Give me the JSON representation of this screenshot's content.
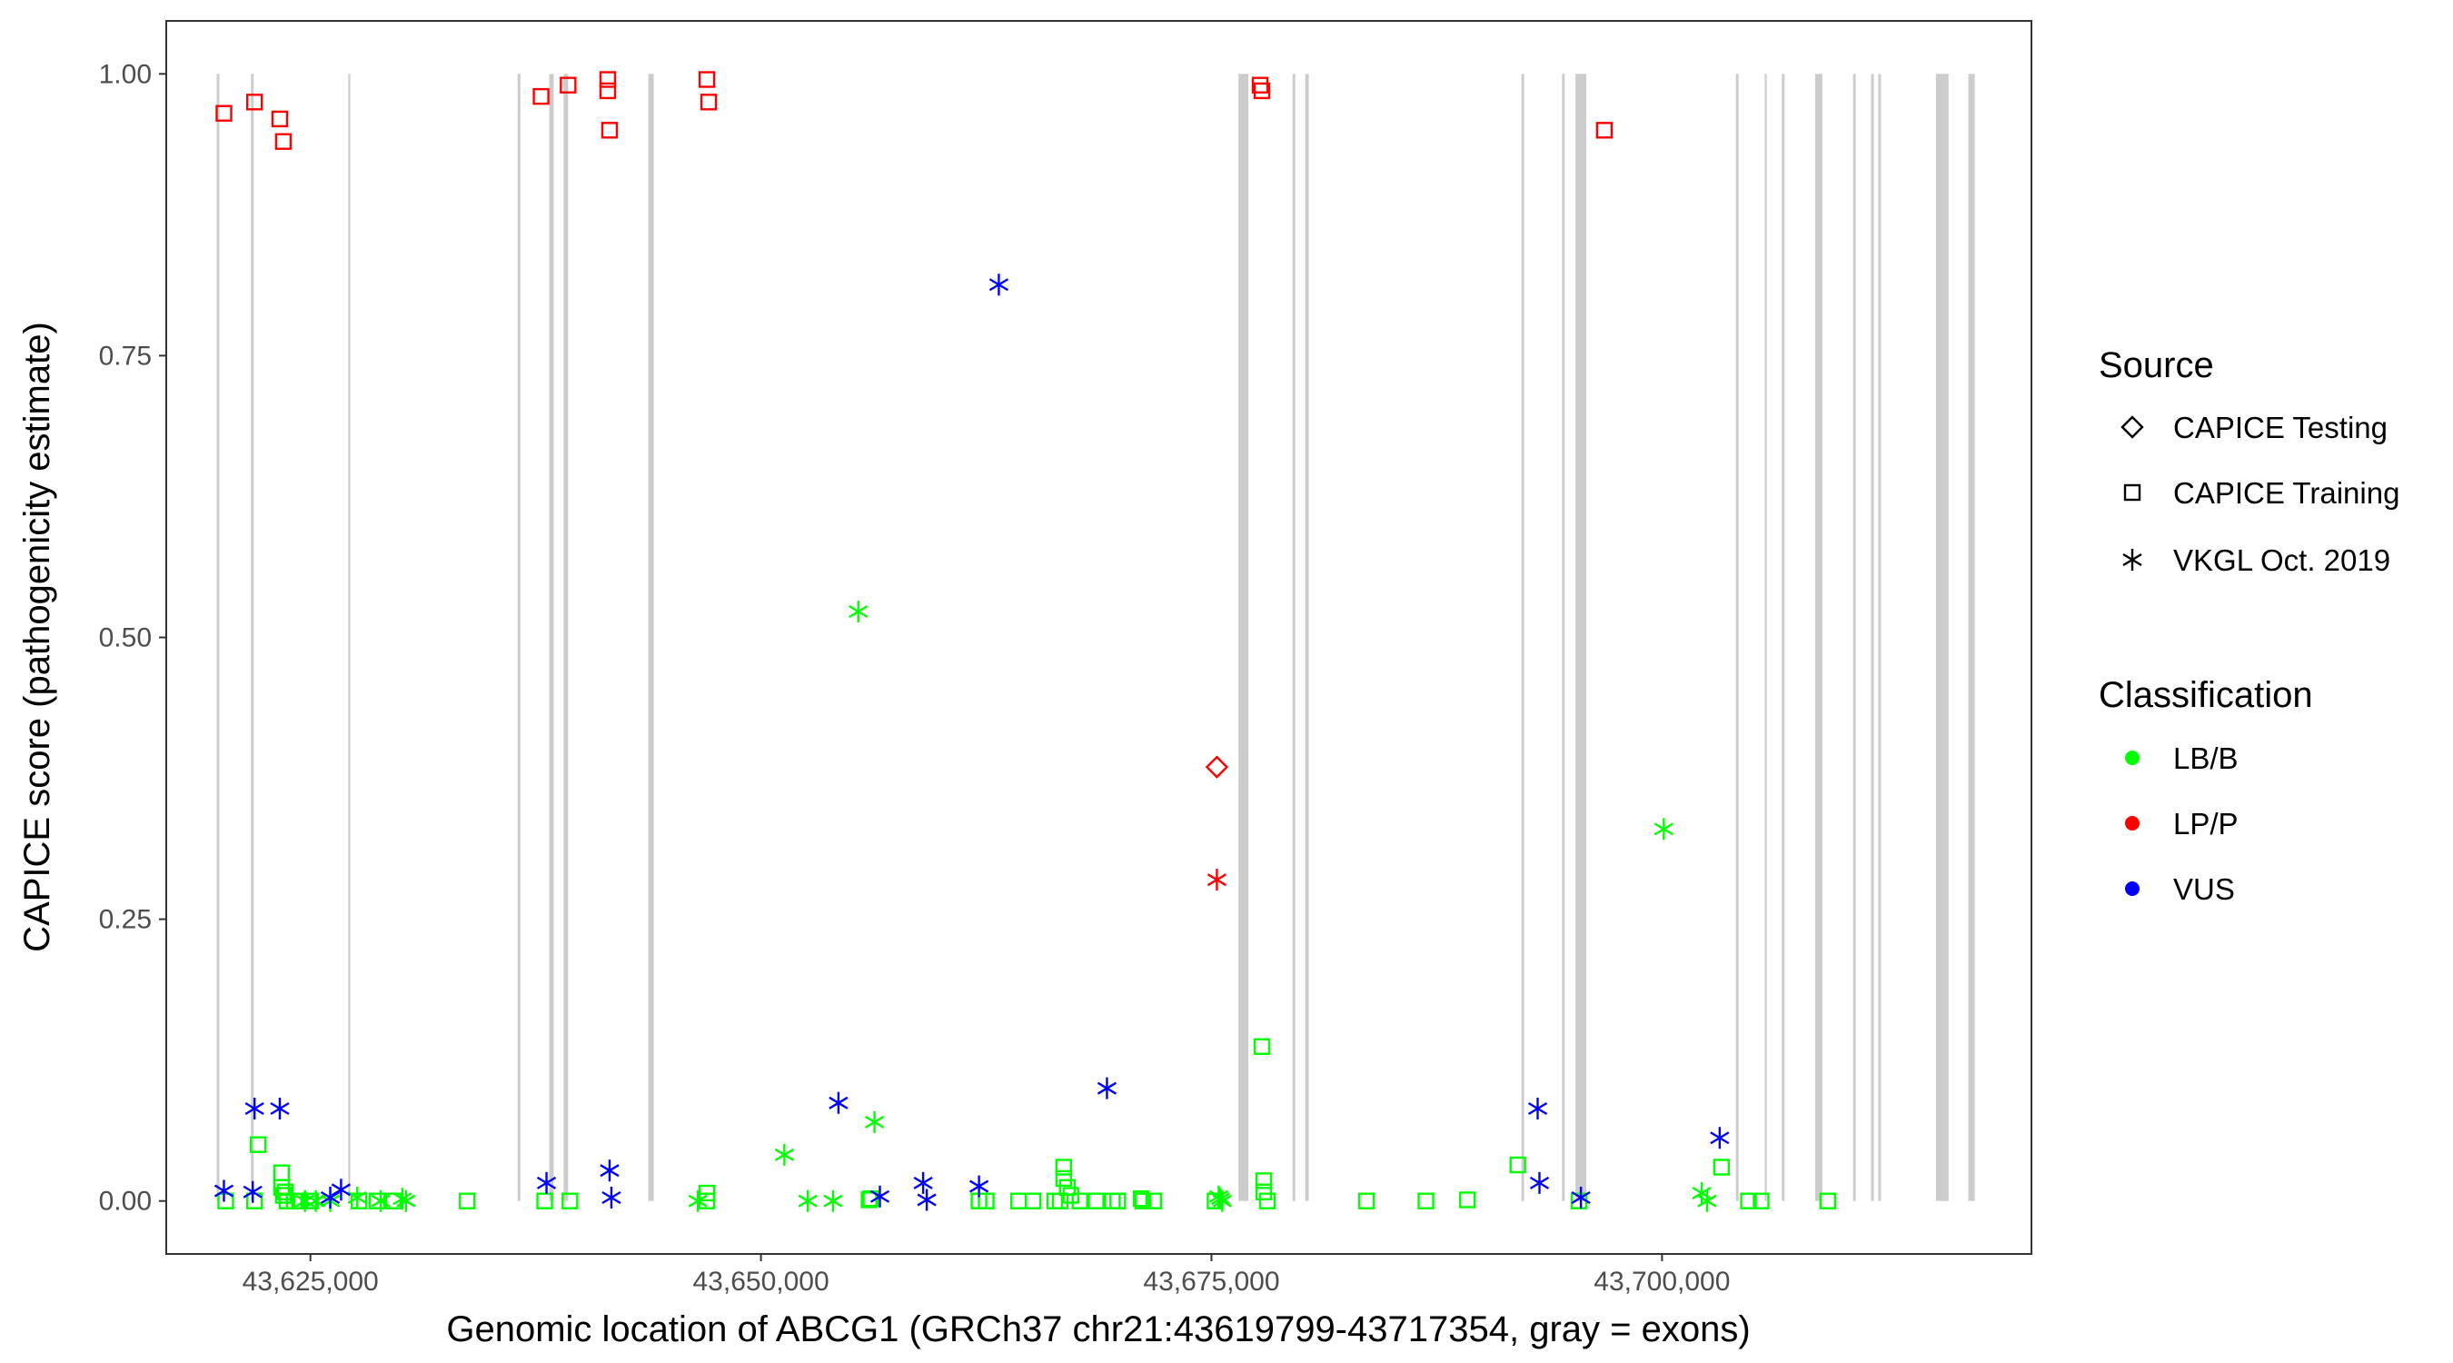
{
  "chart_data": {
    "type": "scatter",
    "xlabel": "Genomic location of ABCG1 (GRCh37 chr21:43619799-43717354, gray = exons)",
    "ylabel": "CAPICE score (pathogenicity estimate)",
    "xlim": [
      43617000,
      43720500
    ],
    "ylim": [
      -0.047,
      1.047
    ],
    "x_ticks": [
      43625000,
      43650000,
      43675000,
      43700000
    ],
    "x_tick_labels": [
      "43,625,000",
      "43,650,000",
      "43,675,000",
      "43,700,000"
    ],
    "y_ticks": [
      0,
      0.25,
      0.5,
      0.75,
      1.0
    ],
    "y_tick_labels": [
      "0.00",
      "0.25",
      "0.50",
      "0.75",
      "1.00"
    ],
    "exons": [
      [
        43619799,
        43619950
      ],
      [
        43621700,
        43621850
      ],
      [
        43627100,
        43627200
      ],
      [
        43636500,
        43636650
      ],
      [
        43638250,
        43638500
      ],
      [
        43639050,
        43639300
      ],
      [
        43643750,
        43644050
      ],
      [
        43676500,
        43677050
      ],
      [
        43679500,
        43679650
      ],
      [
        43680200,
        43680400
      ],
      [
        43692200,
        43692350
      ],
      [
        43694450,
        43694600
      ],
      [
        43695200,
        43695800
      ],
      [
        43704100,
        43704250
      ],
      [
        43705700,
        43705800
      ],
      [
        43706650,
        43706800
      ],
      [
        43708500,
        43708900
      ],
      [
        43710600,
        43710750
      ],
      [
        43711600,
        43711750
      ],
      [
        43712000,
        43712150
      ],
      [
        43715200,
        43715900
      ],
      [
        43717000,
        43717354
      ]
    ],
    "legend": {
      "source_title": "Source",
      "source_items": [
        {
          "label": "CAPICE Testing",
          "shape": "diamond"
        },
        {
          "label": "CAPICE Training",
          "shape": "square"
        },
        {
          "label": "VKGL Oct. 2019",
          "shape": "asterisk"
        }
      ],
      "class_title": "Classification",
      "class_items": [
        {
          "label": "LB/B",
          "color": "#00ff00"
        },
        {
          "label": "LP/P",
          "color": "#ff0000"
        },
        {
          "label": "VUS",
          "color": "#0000ff"
        }
      ]
    },
    "series": [
      {
        "source": "CAPICE Training",
        "class": "LP/P",
        "x": [
          43620200,
          43621900,
          43623300,
          43623500,
          43637800,
          43639300,
          43641500,
          43641500,
          43641600,
          43647000,
          43647100,
          43677700,
          43677800,
          43696800
        ],
        "y": [
          0.965,
          0.975,
          0.96,
          0.94,
          0.98,
          0.99,
          0.995,
          0.985,
          0.95,
          0.995,
          0.975,
          0.99,
          0.985,
          0.95
        ]
      },
      {
        "source": "CAPICE Testing",
        "class": "LP/P",
        "x": [
          43675300
        ],
        "y": [
          0.385
        ]
      },
      {
        "source": "VKGL Oct. 2019",
        "class": "LP/P",
        "x": [
          43675300
        ],
        "y": [
          0.285
        ]
      },
      {
        "source": "CAPICE Training",
        "class": "LB/B",
        "x": [
          43620300,
          43621900,
          43622100,
          43623400,
          43623400,
          43623600,
          43623500,
          43623700,
          43624100,
          43624400,
          43625000,
          43627700,
          43628700,
          43629600,
          43633700,
          43638000,
          43639400,
          43647000,
          43647000,
          43656000,
          43656100,
          43662100,
          43662500,
          43664300,
          43665100,
          43666300,
          43666600,
          43666800,
          43666800,
          43667000,
          43667200,
          43667700,
          43668600,
          43669500,
          43669800,
          43671100,
          43671200,
          43671800,
          43675200,
          43677800,
          43677900,
          43677900,
          43678100,
          43683600,
          43686900,
          43689200,
          43692000,
          43695400,
          43703300,
          43704800,
          43705500,
          43709200
        ],
        "y": [
          0.0,
          0.0,
          0.05,
          0.025,
          0.012,
          0.008,
          0.005,
          0.0,
          0.0,
          0.0,
          0.0,
          0.0,
          0.0,
          0.0,
          0.0,
          0.0,
          0.0,
          0.007,
          0.0,
          0.001,
          0.002,
          0.0,
          0.0,
          0.0,
          0.0,
          0.0,
          0.0,
          0.03,
          0.02,
          0.012,
          0.005,
          0.0,
          0.0,
          0.0,
          0.0,
          0.002,
          0.0,
          0.0,
          0.0,
          0.137,
          0.018,
          0.008,
          0.0,
          0.0,
          0.0,
          0.001,
          0.032,
          0.0,
          0.03,
          0.0,
          0.0,
          0.0
        ]
      },
      {
        "source": "VKGL Oct. 2019",
        "class": "LB/B",
        "x": [
          43624700,
          43625300,
          43626100,
          43627600,
          43628900,
          43630100,
          43630300,
          43646500,
          43651300,
          43652600,
          43654000,
          43655400,
          43656300,
          43675400,
          43675500,
          43675600,
          43700100,
          43702200,
          43702500
        ],
        "y": [
          0.0,
          0.0,
          0.0,
          0.003,
          0.0,
          0.002,
          0.0,
          0.0,
          0.041,
          0.0,
          0.0,
          0.523,
          0.07,
          0.004,
          0.002,
          0.0,
          0.33,
          0.007,
          0.0
        ]
      },
      {
        "source": "VKGL Oct. 2019",
        "class": "VUS",
        "x": [
          43620200,
          43621800,
          43621900,
          43623300,
          43626100,
          43626700,
          43638100,
          43641600,
          43641700,
          43654300,
          43656600,
          43659000,
          43659200,
          43662100,
          43663200,
          43669200,
          43693100,
          43693200,
          43695500,
          43703200
        ],
        "y": [
          0.009,
          0.008,
          0.082,
          0.082,
          0.003,
          0.01,
          0.016,
          0.027,
          0.003,
          0.087,
          0.004,
          0.016,
          0.001,
          0.013,
          0.813,
          0.1,
          0.082,
          0.016,
          0.003,
          0.056
        ]
      }
    ]
  }
}
